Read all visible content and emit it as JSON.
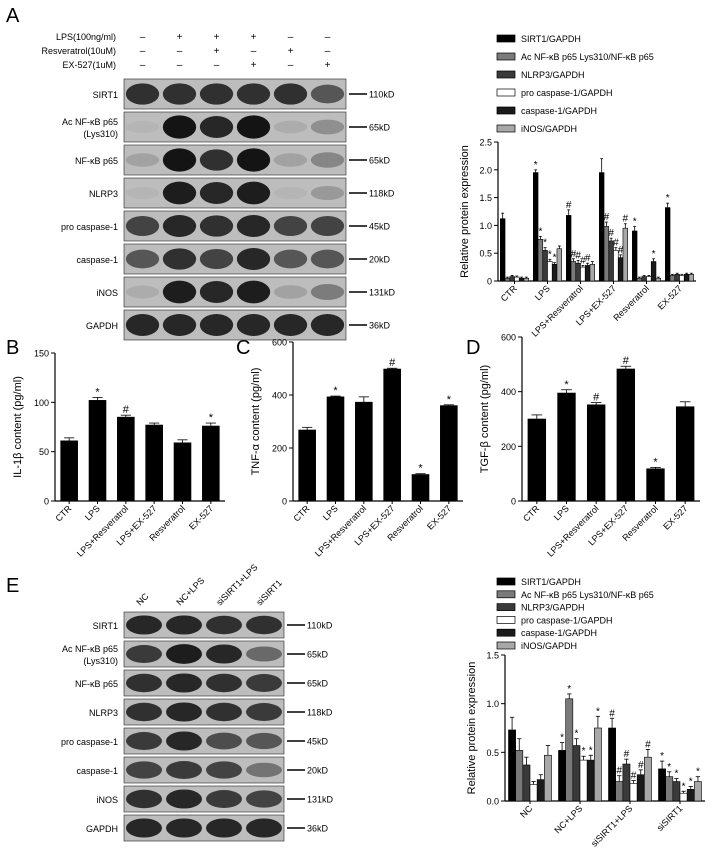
{
  "panel_letters": [
    "A",
    "B",
    "C",
    "D",
    "E"
  ],
  "blotA": {
    "treatments": [
      "LPS(100ng/ml)",
      "Resveratrol(10uM)",
      "EX-527(1uM)"
    ],
    "signs": [
      [
        "–",
        "+",
        "+",
        "+",
        "–",
        "–"
      ],
      [
        "–",
        "–",
        "+",
        "–",
        "+",
        "–"
      ],
      [
        "–",
        "–",
        "–",
        "+",
        "–",
        "+"
      ]
    ],
    "rows": [
      {
        "label": "SIRT1",
        "size": "110kD"
      },
      {
        "label": "Ac NF-κB p65\n(Lys310)",
        "size": "65kD"
      },
      {
        "label": "NF-κB p65",
        "size": "65kD"
      },
      {
        "label": "NLRP3",
        "size": "118kD"
      },
      {
        "label": "pro caspase-1",
        "size": "45kD"
      },
      {
        "label": "caspase-1",
        "size": "20kD"
      },
      {
        "label": "iNOS",
        "size": "131kD"
      },
      {
        "label": "GAPDH",
        "size": "36kD"
      }
    ],
    "intensity": [
      [
        0.8,
        0.8,
        0.8,
        0.8,
        0.8,
        0.6
      ],
      [
        0.1,
        0.95,
        0.85,
        0.95,
        0.15,
        0.3
      ],
      [
        0.2,
        0.95,
        0.8,
        0.95,
        0.2,
        0.35
      ],
      [
        0.1,
        0.9,
        0.85,
        0.9,
        0.1,
        0.25
      ],
      [
        0.7,
        0.85,
        0.8,
        0.85,
        0.7,
        0.7
      ],
      [
        0.6,
        0.8,
        0.7,
        0.85,
        0.6,
        0.6
      ],
      [
        0.15,
        0.9,
        0.85,
        0.9,
        0.2,
        0.4
      ],
      [
        0.85,
        0.85,
        0.85,
        0.85,
        0.85,
        0.85
      ]
    ]
  },
  "blotE": {
    "lanes": [
      "NC",
      "NC+LPS",
      "siSIRT1+LPS",
      "siSIRT1"
    ],
    "rows": [
      {
        "label": "SIRT1",
        "size": "110kD"
      },
      {
        "label": "Ac NF-κB p65\n(Lys310)",
        "size": "65kD"
      },
      {
        "label": "NF-κB p65",
        "size": "65kD"
      },
      {
        "label": "NLRP3",
        "size": "118kD"
      },
      {
        "label": "pro caspase-1",
        "size": "45kD"
      },
      {
        "label": "caspase-1",
        "size": "20kD"
      },
      {
        "label": "iNOS",
        "size": "131kD"
      },
      {
        "label": "GAPDH",
        "size": "36kD"
      }
    ],
    "intensity": [
      [
        0.85,
        0.85,
        0.8,
        0.8
      ],
      [
        0.75,
        0.9,
        0.85,
        0.5
      ],
      [
        0.8,
        0.85,
        0.8,
        0.75
      ],
      [
        0.8,
        0.85,
        0.8,
        0.75
      ],
      [
        0.75,
        0.85,
        0.65,
        0.6
      ],
      [
        0.7,
        0.75,
        0.7,
        0.45
      ],
      [
        0.8,
        0.85,
        0.75,
        0.7
      ],
      [
        0.85,
        0.85,
        0.85,
        0.85
      ]
    ]
  },
  "legend_entries": [
    "SIRT1/GAPDH",
    "Ac NF-κB p65 Lys310/NF-κB p65",
    "NLRP3/GAPDH",
    "pro caspase-1/GAPDH",
    "caspase-1/GAPDH",
    "iNOS/GAPDH"
  ],
  "series_colors": [
    "#000000",
    "#7a7a7a",
    "#3a3a3a",
    "#ffffff",
    "#1a1a1a",
    "#a8a8a8"
  ],
  "chart_data": [
    {
      "id": "A-bar",
      "type": "bar",
      "categories": [
        "CTR",
        "LPS",
        "LPS+Resveratrol",
        "LPS+EX-527",
        "Resveratrol",
        "EX-527"
      ],
      "ylabel": "Relative  protein  expression",
      "ylim": [
        0,
        2.5
      ],
      "yticks": [
        0,
        0.5,
        1.0,
        1.5,
        2.0,
        2.5
      ],
      "series": [
        {
          "name": "SIRT1/GAPDH",
          "values": [
            1.12,
            1.95,
            1.18,
            1.95,
            0.9,
            1.32
          ],
          "errors": [
            0.1,
            0.05,
            0.1,
            0.25,
            0.08,
            0.08
          ],
          "marks": [
            "",
            "*",
            "#",
            "",
            "*",
            "*"
          ]
        },
        {
          "name": "Ac NF-κB p65 Lys310/NF-κB p65",
          "values": [
            0.05,
            0.75,
            0.35,
            0.98,
            0.05,
            0.1
          ],
          "errors": [
            0.02,
            0.05,
            0.05,
            0.08,
            0.02,
            0.02
          ],
          "marks": [
            "",
            "*",
            "#",
            "#",
            "",
            ""
          ]
        },
        {
          "name": "NLRP3/GAPDH",
          "values": [
            0.08,
            0.55,
            0.32,
            0.72,
            0.08,
            0.12
          ],
          "errors": [
            0.02,
            0.05,
            0.05,
            0.05,
            0.02,
            0.02
          ],
          "marks": [
            "",
            "*",
            "#",
            "#",
            "",
            ""
          ]
        },
        {
          "name": "pro caspase-1/GAPDH",
          "values": [
            0.07,
            0.35,
            0.25,
            0.55,
            0.08,
            0.1
          ],
          "errors": [
            0.02,
            0.04,
            0.03,
            0.05,
            0.02,
            0.02
          ],
          "marks": [
            "",
            "*",
            "#",
            "#",
            "",
            ""
          ]
        },
        {
          "name": "caspase-1/GAPDH",
          "values": [
            0.05,
            0.3,
            0.28,
            0.42,
            0.35,
            0.12
          ],
          "errors": [
            0.02,
            0.03,
            0.04,
            0.05,
            0.05,
            0.02
          ],
          "marks": [
            "",
            "*",
            "#",
            "#",
            "*",
            ""
          ]
        },
        {
          "name": "iNOS/GAPDH",
          "values": [
            0.05,
            0.58,
            0.3,
            0.95,
            0.05,
            0.12
          ],
          "errors": [
            0.02,
            0.05,
            0.05,
            0.08,
            0.02,
            0.02
          ],
          "marks": [
            "",
            "",
            "",
            "#",
            "",
            ""
          ]
        }
      ],
      "legend": "top-right"
    },
    {
      "id": "B",
      "type": "bar",
      "categories": [
        "CTR",
        "LPS",
        "LPS+Resveratrol",
        "LPS+EX-527",
        "Resveratrol",
        "EX-527"
      ],
      "values": [
        61,
        102,
        85,
        77,
        59,
        76
      ],
      "errors": [
        3,
        3,
        2,
        2,
        3,
        3
      ],
      "marks": [
        "",
        "*",
        "#",
        "",
        "",
        "*"
      ],
      "ylabel": "IL-1β  content  (pg/ml)",
      "ylim": [
        0,
        150
      ],
      "yticks": [
        0,
        50,
        100,
        150
      ]
    },
    {
      "id": "C",
      "type": "bar",
      "categories": [
        "CTR",
        "LPS",
        "LPS+Resveratrol",
        "LPS+EX-527",
        "Resveratrol",
        "EX-527"
      ],
      "values": [
        268,
        393,
        373,
        498,
        100,
        360
      ],
      "errors": [
        10,
        3,
        20,
        3,
        3,
        3
      ],
      "marks": [
        "",
        "*",
        "",
        "#",
        "*",
        "*"
      ],
      "ylabel": "TNF-α content (pg/ml)",
      "ylim": [
        0,
        600
      ],
      "yticks": [
        0,
        200,
        400,
        600
      ]
    },
    {
      "id": "D",
      "type": "bar",
      "categories": [
        "CTR",
        "LPS",
        "LPS+Resveratrol",
        "LPS+EX-527",
        "Resveratrol",
        "EX-527"
      ],
      "values": [
        300,
        395,
        352,
        483,
        118,
        345
      ],
      "errors": [
        15,
        12,
        8,
        10,
        5,
        18
      ],
      "marks": [
        "",
        "*",
        "#",
        "#",
        "*",
        ""
      ],
      "ylabel": "TGF-β  content  (pg/ml)",
      "ylim": [
        0,
        600
      ],
      "yticks": [
        0,
        200,
        400,
        600
      ]
    },
    {
      "id": "E-bar",
      "type": "bar",
      "categories": [
        "NC",
        "NC+LPS",
        "siSIRT1+LPS",
        "siSIRT1"
      ],
      "ylabel": "Relative  protein  expression",
      "ylim": [
        0,
        1.5
      ],
      "yticks": [
        0.0,
        0.5,
        1.0,
        1.5
      ],
      "series": [
        {
          "name": "SIRT1/GAPDH",
          "values": [
            0.73,
            0.52,
            0.75,
            0.33
          ],
          "errors": [
            0.13,
            0.08,
            0.1,
            0.08
          ],
          "marks": [
            "",
            "*",
            "#",
            "*"
          ]
        },
        {
          "name": "Ac NF-κB p65 Lys310/NF-κB p65",
          "values": [
            0.52,
            1.05,
            0.2,
            0.25
          ],
          "errors": [
            0.12,
            0.05,
            0.06,
            0.05
          ],
          "marks": [
            "",
            "*",
            "#",
            "*"
          ]
        },
        {
          "name": "NLRP3/GAPDH",
          "values": [
            0.37,
            0.57,
            0.38,
            0.2
          ],
          "errors": [
            0.08,
            0.07,
            0.05,
            0.03
          ],
          "marks": [
            "",
            "*",
            "#",
            "*"
          ]
        },
        {
          "name": "pro caspase-1/GAPDH",
          "values": [
            0.17,
            0.42,
            0.18,
            0.08
          ],
          "errors": [
            0.03,
            0.04,
            0.03,
            0.02
          ],
          "marks": [
            "",
            "*",
            "#",
            "*"
          ]
        },
        {
          "name": "caspase-1/GAPDH",
          "values": [
            0.22,
            0.42,
            0.27,
            0.12
          ],
          "errors": [
            0.05,
            0.05,
            0.05,
            0.03
          ],
          "marks": [
            "",
            "*",
            "#",
            "*"
          ]
        },
        {
          "name": "iNOS/GAPDH",
          "values": [
            0.47,
            0.75,
            0.45,
            0.2
          ],
          "errors": [
            0.1,
            0.12,
            0.08,
            0.05
          ],
          "marks": [
            "",
            "*",
            "#",
            "*"
          ]
        }
      ],
      "legend": "top-right"
    }
  ]
}
